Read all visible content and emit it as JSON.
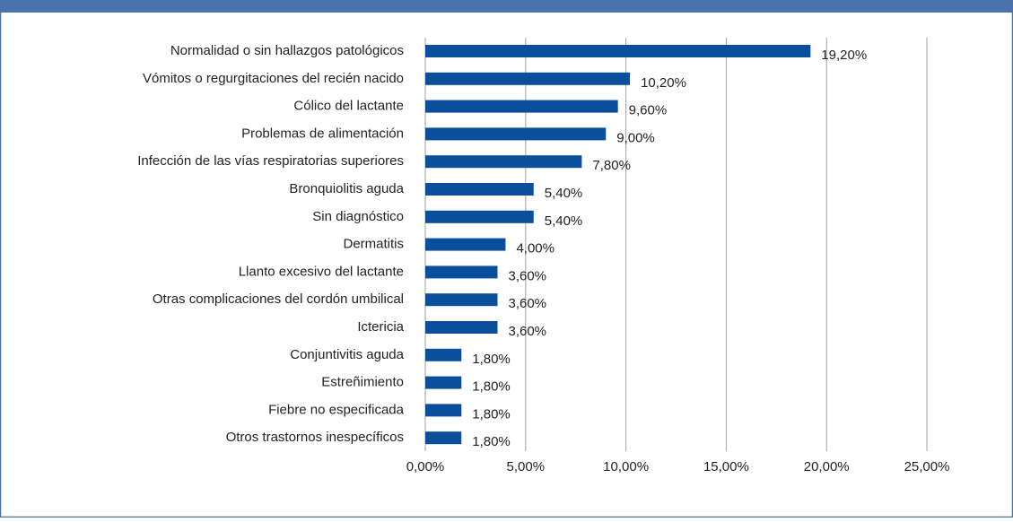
{
  "chart_data": {
    "type": "bar",
    "orientation": "horizontal",
    "categories": [
      "Normalidad o sin hallazgos patológicos",
      "Vómitos o regurgitaciones del recién nacido",
      "Cólico del lactante",
      "Problemas de alimentación",
      "Infección de las vías respiratorias superiores",
      "Bronquiolitis aguda",
      "Sin diagnóstico",
      "Dermatitis",
      "Llanto excesivo del lactante",
      "Otras complicaciones del cordón umbilical",
      "Ictericia",
      "Conjuntivitis aguda",
      "Estreñimiento",
      "Fiebre no especificada",
      "Otros trastornos inespecíficos"
    ],
    "values": [
      19.2,
      10.2,
      9.6,
      9.0,
      7.8,
      5.4,
      5.4,
      4.0,
      3.6,
      3.6,
      3.6,
      1.8,
      1.8,
      1.8,
      1.8
    ],
    "value_labels": [
      "19,20%",
      "10,20%",
      "9,60%",
      "9,00%",
      "7,80%",
      "5,40%",
      "5,40%",
      "4,00%",
      "3,60%",
      "3,60%",
      "3,60%",
      "1,80%",
      "1,80%",
      "1,80%",
      "1,80%"
    ],
    "color": "#0b4f9c",
    "xlim": [
      0,
      25
    ],
    "xticks": [
      {
        "value": 0,
        "label": "0,00%"
      },
      {
        "value": 5,
        "label": "5,00%"
      },
      {
        "value": 10,
        "label": "10,00%"
      },
      {
        "value": 15,
        "label": "15,00%"
      },
      {
        "value": 20,
        "label": "20,00%"
      },
      {
        "value": 25,
        "label": "25,00%"
      }
    ],
    "grid": true
  }
}
